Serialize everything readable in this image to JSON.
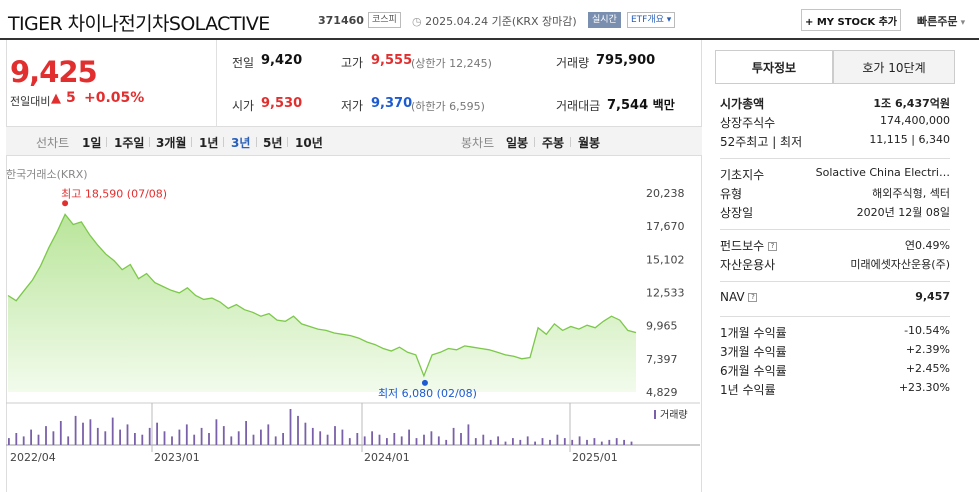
{
  "header": {
    "name": "TIGER 차이나전기차SOLACTIVE",
    "code": "371460",
    "market_tag": "코스피",
    "date_text": "2025.04.24 기준(KRX 장마감)",
    "realtime_tag": "실시간",
    "etf_tag": "ETF개요",
    "mystock_label": "+ MY STOCK 추가",
    "quick_order": "빠른주문"
  },
  "quote": {
    "price": "9,425",
    "diff_label": "전일대비",
    "diff_value": "5",
    "diff_pct": "+0.05%",
    "prev_label": "전일",
    "prev": "9,420",
    "high_label": "고가",
    "high": "9,555",
    "upper_limit": "(상한가 12,245)",
    "volume_label": "거래량",
    "volume": "795,900",
    "open_label": "시가",
    "open": "9,530",
    "low_label": "저가",
    "low": "9,370",
    "lower_limit": "(하한가 6,595)",
    "amount_label": "거래대금",
    "amount": "7,544",
    "amount_unit": "백만"
  },
  "periods": {
    "line_label": "선차트",
    "line": [
      "1일",
      "1주일",
      "3개월",
      "1년",
      "3년",
      "5년",
      "10년"
    ],
    "selected": "3년",
    "candle_label": "봉차트",
    "candle": [
      "일봉",
      "주봉",
      "월봉"
    ]
  },
  "chart_source": "한국거래소(KRX)",
  "chart_data": {
    "type": "area",
    "x_ticks": [
      "2022/04",
      "2023/01",
      "2024/01",
      "2025/01"
    ],
    "y_ticks": [
      20238,
      17670,
      15102,
      12533,
      9965,
      7397,
      4829
    ],
    "y_tick_labels": [
      "20,238",
      "17,670",
      "15,102",
      "12,533",
      "9,965",
      "7,397",
      "4,829"
    ],
    "ylim": [
      4829,
      20238
    ],
    "series": [
      {
        "values": [
          12300,
          11900,
          12700,
          13500,
          14600,
          16000,
          17200,
          18590,
          17800,
          18000,
          17000,
          16200,
          15500,
          15000,
          14300,
          14700,
          13600,
          14000,
          13300,
          13000,
          12700,
          12500,
          12900,
          12300,
          12000,
          12100,
          11800,
          11300,
          11600,
          11200,
          11000,
          10700,
          10900,
          10400,
          10300,
          10700,
          10100,
          9900,
          9700,
          9600,
          9400,
          9300,
          9200,
          9000,
          8700,
          8500,
          8200,
          8000,
          8300,
          7900,
          7700,
          6080,
          7700,
          7900,
          8200,
          8100,
          8400,
          8300,
          8200,
          8100,
          7900,
          7700,
          7600,
          7400,
          7500,
          9800,
          9300,
          10100,
          9600,
          9900,
          9700,
          10000,
          9800,
          10300,
          10700,
          10400,
          9600,
          9425
        ]
      }
    ],
    "annotations": {
      "high_label": "최고 18,590 (07/08)",
      "low_label": "최저 6,080 (02/08)"
    },
    "volume_label": "거래량",
    "volume_values": [
      4,
      7,
      5,
      9,
      6,
      11,
      8,
      14,
      5,
      17,
      13,
      15,
      10,
      8,
      16,
      9,
      12,
      7,
      6,
      10,
      13,
      8,
      5,
      9,
      12,
      6,
      10,
      7,
      15,
      11,
      5,
      8,
      14,
      6,
      9,
      12,
      5,
      7,
      21,
      17,
      13,
      10,
      8,
      6,
      11,
      9,
      4,
      7,
      5,
      8,
      6,
      4,
      7,
      5,
      9,
      4,
      6,
      8,
      5,
      3,
      10,
      7,
      12,
      4,
      6,
      3,
      5,
      2,
      4,
      3,
      5,
      2,
      4,
      3,
      6,
      4,
      3,
      5,
      3,
      4,
      2,
      3,
      4,
      3,
      2
    ]
  },
  "right": {
    "tabs": [
      "투자정보",
      "호가 10단계"
    ],
    "rows1": [
      {
        "label": "시가총액",
        "value": "1조 6,437억원"
      },
      {
        "label": "상장주식수",
        "value": "174,400,000"
      },
      {
        "label": "52주최고 | 최저",
        "value": "11,115 | 6,340"
      }
    ],
    "rows2": [
      {
        "label": "기초지수",
        "value": "Solactive China Electri…"
      },
      {
        "label": "유형",
        "value": "해외주식형, 섹터"
      },
      {
        "label": "상장일",
        "value": "2020년 12월 08일"
      }
    ],
    "rows3": [
      {
        "label": "펀드보수",
        "value": "연0.49%"
      },
      {
        "label": "자산운용사",
        "value": "미래에셋자산운용(주)"
      }
    ],
    "nav": {
      "label": "NAV",
      "value": "9,457"
    },
    "returns": [
      {
        "label": "1개월 수익률",
        "value": "-10.54%"
      },
      {
        "label": "3개월 수익률",
        "value": "+2.39%"
      },
      {
        "label": "6개월 수익률",
        "value": "+2.45%"
      },
      {
        "label": "1년 수익률",
        "value": "+23.30%"
      }
    ]
  }
}
